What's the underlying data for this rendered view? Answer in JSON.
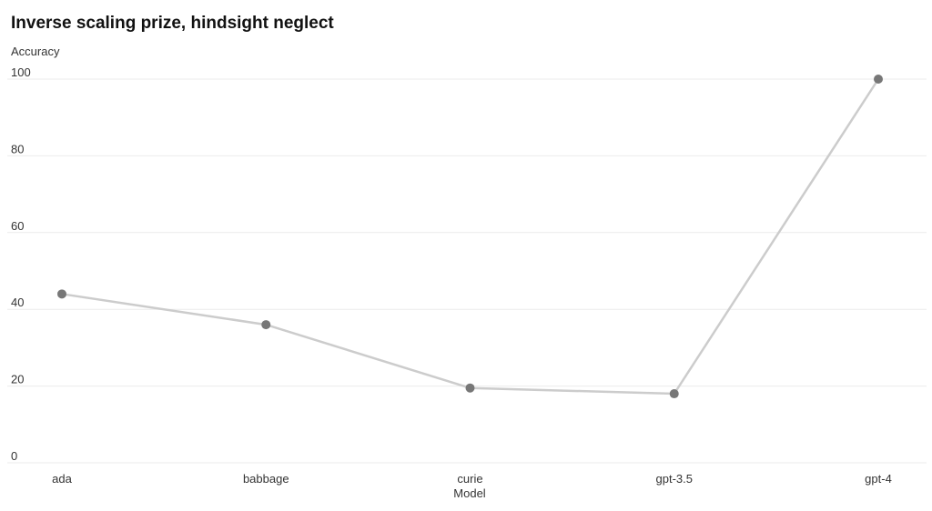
{
  "chart_data": {
    "type": "line",
    "title": "Inverse scaling prize, hindsight neglect",
    "y_label": "Accuracy",
    "x_label": "Model",
    "categories": [
      "ada",
      "babbage",
      "curie",
      "gpt-3.5",
      "gpt-4"
    ],
    "values": [
      44,
      36,
      19.5,
      18,
      100
    ],
    "line_color": "#cccccc",
    "marker_color": "#777777",
    "ylim": [
      0,
      100
    ],
    "yticks": [
      0,
      20,
      40,
      60,
      80,
      100
    ],
    "grid": true
  }
}
